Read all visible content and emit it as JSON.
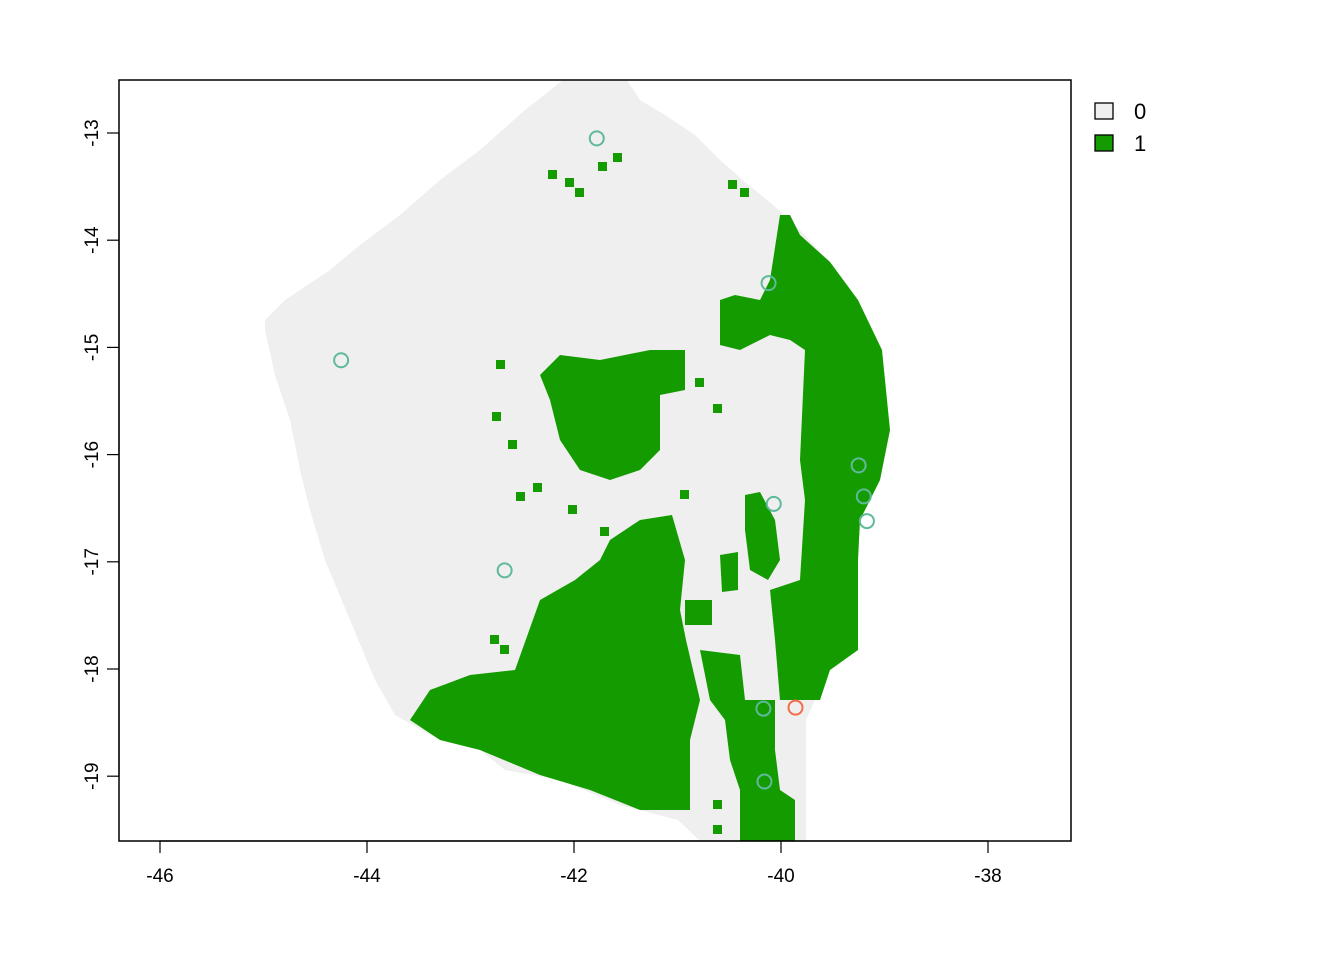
{
  "map": {
    "x_ticks": [
      "-46",
      "-44",
      "-42",
      "-40",
      "-38"
    ],
    "y_ticks": [
      "-13",
      "-14",
      "-15",
      "-16",
      "-17",
      "-18",
      "-19"
    ],
    "x_tick_values": [
      -46,
      -44,
      -42,
      -40,
      -38
    ],
    "y_tick_values": [
      -13,
      -14,
      -15,
      -16,
      -17,
      -18,
      -19
    ],
    "x_range": [
      -46.4,
      -37.2
    ],
    "y_range": [
      -19.6,
      -12.5
    ],
    "legend": {
      "placement": "top-right, outside plot",
      "items": [
        {
          "label": "0",
          "color": "#efefef"
        },
        {
          "label": "1",
          "color": "#149b00"
        }
      ]
    },
    "colors": {
      "class_0": "#efefef",
      "class_1": "#149b00",
      "points_teal": "#5fb99b",
      "point_orange": "#f26b4b"
    },
    "points": [
      {
        "lon": -41.78,
        "lat": -13.05,
        "color": "teal"
      },
      {
        "lon": -40.12,
        "lat": -14.4,
        "color": "teal"
      },
      {
        "lon": -44.25,
        "lat": -15.12,
        "color": "teal"
      },
      {
        "lon": -39.25,
        "lat": -16.1,
        "color": "teal"
      },
      {
        "lon": -39.2,
        "lat": -16.39,
        "color": "teal"
      },
      {
        "lon": -39.17,
        "lat": -16.62,
        "color": "teal"
      },
      {
        "lon": -40.07,
        "lat": -16.46,
        "color": "teal"
      },
      {
        "lon": -42.67,
        "lat": -17.08,
        "color": "teal"
      },
      {
        "lon": -40.17,
        "lat": -18.37,
        "color": "teal"
      },
      {
        "lon": -40.16,
        "lat": -19.05,
        "color": "teal"
      },
      {
        "lon": -39.86,
        "lat": -18.36,
        "color": "orange"
      }
    ]
  }
}
